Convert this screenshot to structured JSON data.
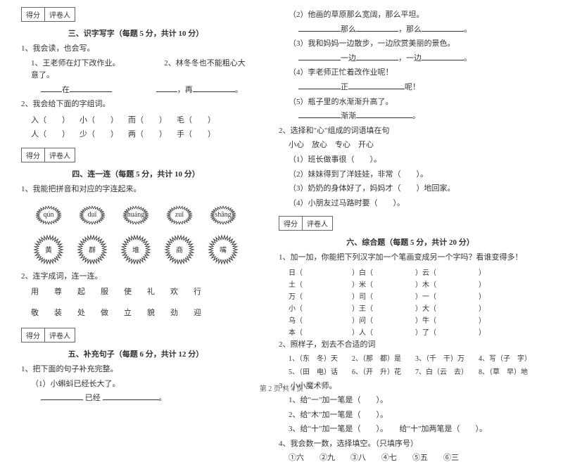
{
  "left": {
    "s3": {
      "score_label": "得分",
      "reviewer_label": "评卷人",
      "title": "三、识字写字（每题 5 分，共计 10 分）",
      "q1": "1、我会读，也会写。",
      "q1_1": "1、王老师在灯下改作业。",
      "q1_2": "2、林冬冬也不能粗心大意了。",
      "q1_blank1": "在",
      "q1_blank2": "，再",
      "q1_blank3": "。",
      "q2": "2、我会给下面的字组词。",
      "row1": [
        "入（　　）",
        "小（　　）",
        "而（　　）",
        "毛（　　）"
      ],
      "row2": [
        "人（　　）",
        "少（　　）",
        "两（　　）",
        "手（　　）"
      ]
    },
    "s4": {
      "score_label": "得分",
      "reviewer_label": "评卷人",
      "title": "四、连一连（每题 5 分，共计 10 分）",
      "q1": "1、我能把拼音和对应的字连起来。",
      "pinyin": [
        "qún",
        "duī",
        "huáng",
        "zuǐ",
        "shāng"
      ],
      "chars": [
        "黄",
        "群",
        "堆",
        "商",
        "嘴"
      ],
      "q2": "2、连字成词，连一连。",
      "row1": [
        "用",
        "尊",
        "起",
        "服",
        "使",
        "礼",
        "欢",
        "行"
      ],
      "row2": [
        "敬",
        "装",
        "处",
        "做",
        "立",
        "貌",
        "劲",
        "迎"
      ]
    },
    "s5": {
      "score_label": "得分",
      "reviewer_label": "评卷人",
      "title": "五、补充句子（每题 6 分，共计 12 分）",
      "q1": "1、把下面的句子补充完整。",
      "q1_1": "（1）小蝌蚪已经长大了。",
      "q1_1b": "已经"
    }
  },
  "right": {
    "cont": {
      "l1": "（2）他画的草原那么宽阔，那么平坦。",
      "l1b_a": "那么",
      "l1b_b": "，那么",
      "l2": "（3）我和妈妈一边散步，一边欣赏美丽的景色。",
      "l2b_a": "一边",
      "l2b_b": "，一边",
      "l3": "（4）李老师正忙着改作业呢！",
      "l3b": "正",
      "l3c": "呢！",
      "l4": "（5）瓶子里的水渐渐升高了。",
      "l4b": "渐渐",
      "q2": "2、选择和\"心\"组成的词语填在句",
      "q2_opts": "小心　放心　专心　开心",
      "q2_1": "（1）班长做事很（　　）。",
      "q2_2": "（2）妹妹得到了洋娃娃，非常（　　）。",
      "q2_3": "（3）奶奶的身体好了，妈妈才（　　）地回家。",
      "q2_4": "（4）小朋友过马路时要（　　）。"
    },
    "s6": {
      "score_label": "得分",
      "reviewer_label": "评卷人",
      "title": "六、综合题（每题 5 分，共计 20 分）",
      "q1": "1、加一加，你能把下列汉字加一个笔画变成另一个字吗？看谁变得多！",
      "rows": [
        [
          "日（",
          "）白（",
          "）云（",
          "）"
        ],
        [
          "土（",
          "）米（",
          "）木（",
          "）"
        ],
        [
          "万（",
          "）司（",
          "）一（",
          "）"
        ],
        [
          "小（",
          "）王（",
          "）大（",
          "）"
        ],
        [
          "乌（",
          "）问（",
          "）牛（",
          "）"
        ],
        [
          "本（",
          "）人（",
          "）了（",
          "）"
        ]
      ],
      "q2": "2、照样子，划去不合适的词",
      "q2_1": "1、（东　冬）天　　2、（那　都）是　　3、（千　干）万　　4、写（子　字）",
      "q2_2": "5、（田　电）话　　6、（开　升）花　　7、白（云　去）　　8、（草　早）地",
      "q3": "3、小小魔术师。",
      "q3_1": "1、给\"一\"加一笔是（　　）。",
      "q3_2": "2、给\"木\"加一笔是（　　）。",
      "q3_3": "3、给\"十\"加一笔是（　　）。　　给\"十\"加两笔是（　　）。",
      "q4": "4、我会数一数，选择填空。（只填序号）",
      "q4_opts": "①六　　②九　　③八　　④七　　⑤五　　⑥三"
    }
  },
  "footer": "第 2 页 共 4 页"
}
